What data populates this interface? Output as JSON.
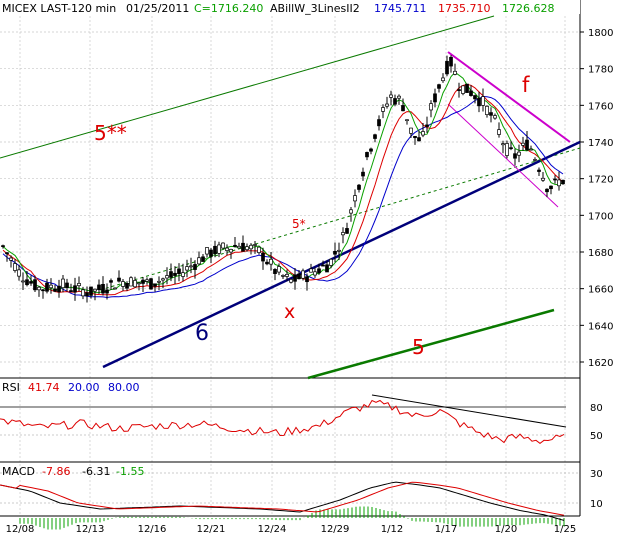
{
  "chart_data": {
    "type": "candlestick",
    "header": {
      "symbol": "MICEX LAST-120 min",
      "date": "01/25/2011",
      "close": "C=1716.240",
      "indicator": "ABillW_3LinesII2",
      "line1": "1745.711",
      "line2": "1735.710",
      "line3": "1726.628"
    },
    "price_axis": {
      "ticks": [
        "1800",
        "1780",
        "1760",
        "1740",
        "1720",
        "1700",
        "1680",
        "1660",
        "1640",
        "1620"
      ],
      "ylim": [
        1610,
        1810
      ]
    },
    "x_ticks": [
      "12/08",
      "12/13",
      "12/16",
      "12/21",
      "12/24",
      "12/29",
      "1/12",
      "1/17",
      "1/20",
      "1/25"
    ],
    "annotations": [
      {
        "text": "5**",
        "color": "#dd0000"
      },
      {
        "text": "5*",
        "color": "#dd0000"
      },
      {
        "text": "x",
        "color": "#dd0000"
      },
      {
        "text": "6",
        "color": "#00007a"
      },
      {
        "text": "5",
        "color": "#dd0000"
      },
      {
        "text": "f",
        "color": "#dd0000"
      }
    ],
    "rsi": {
      "label": "RSI",
      "value": "41.74",
      "level_low": "20.00",
      "level_high": "80.00",
      "ticks": [
        "80",
        "50"
      ]
    },
    "macd": {
      "label": "MACD",
      "macd": "-7.86",
      "signal": "-6.31",
      "hist": "-1.55",
      "ticks": [
        "30",
        "10"
      ]
    },
    "colors": {
      "close_line": "#0aa000",
      "line1": "#0000cc",
      "line2": "#dd0000",
      "line3": "#0aa000",
      "trend_green": "#0a7a00",
      "trend_blue": "#00007a",
      "trend_magenta": "#cc00cc"
    }
  }
}
